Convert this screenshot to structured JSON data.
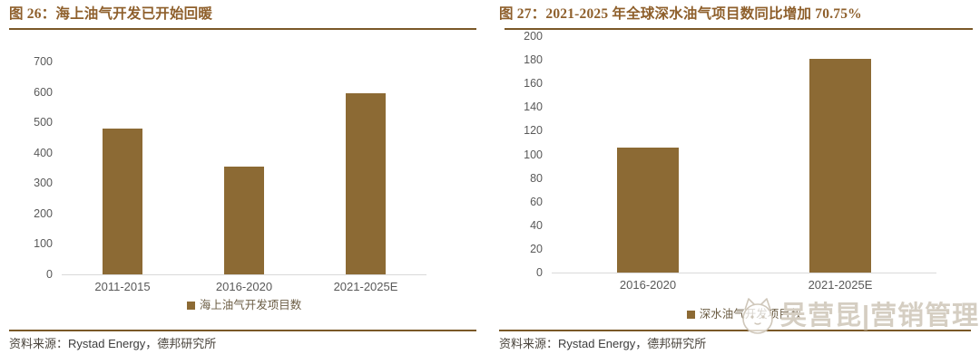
{
  "colors": {
    "bar": "#8C6A34",
    "title_text": "#8E5F2B",
    "rule": "#7A5827",
    "axis_line": "#D9D9D9",
    "tick_text": "#595959",
    "legend_text": "#6B5C43",
    "source_text": "#4A443C",
    "watermark_text": "#D5CEC2"
  },
  "figures": [
    {
      "source_label": "资料来源：",
      "source_en": "Rystad Energy，",
      "source_cn": "德邦研究所"
    },
    {
      "source_label": "资料来源：",
      "source_en": "Rystad Energy，",
      "source_cn": "德邦研究所"
    }
  ],
  "watermark": {
    "text": "吴营昆|营销管理",
    "logo": "cat-face-logo"
  },
  "chart_data": [
    {
      "type": "bar",
      "title": "图 26：海上油气开发已开始回暖",
      "categories": [
        "2011-2015",
        "2016-2020",
        "2021-2025E"
      ],
      "values": [
        480,
        355,
        595
      ],
      "legend": [
        "海上油气开发项目数"
      ],
      "xlabel": "",
      "ylabel": "",
      "ylim": [
        0,
        700
      ],
      "ytick_step": 100,
      "grid": false,
      "legend_position": "bottom",
      "bar_color": "#8C6A34"
    },
    {
      "type": "bar",
      "title": "图 27：2021-2025 年全球深水油气项目数同比增加 70.75%",
      "categories": [
        "2016-2020",
        "2021-2025E"
      ],
      "values": [
        106,
        181
      ],
      "legend": [
        "深水油气开发项目数"
      ],
      "xlabel": "",
      "ylabel": "",
      "ylim": [
        0,
        200
      ],
      "ytick_step": 20,
      "grid": false,
      "legend_position": "bottom",
      "bar_color": "#8C6A34"
    }
  ]
}
